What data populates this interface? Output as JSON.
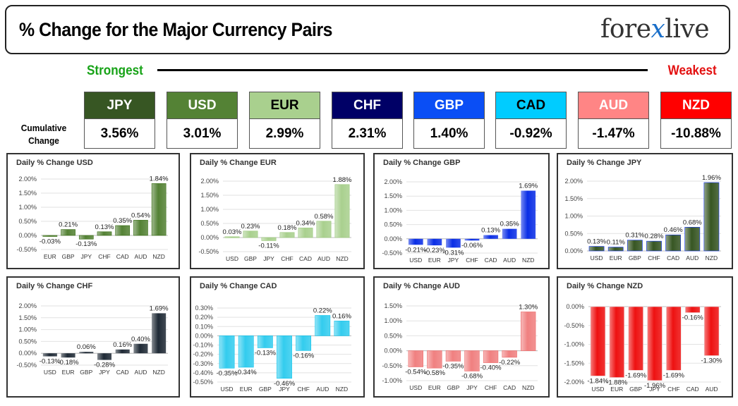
{
  "header": {
    "title": "% Change for the Major Currency Pairs",
    "logo_left": "fore",
    "logo_x": "x",
    "logo_right": "live"
  },
  "legend": {
    "strongest": "Strongest",
    "weakest": "Weakest",
    "cumulative_label_1": "Cumulative",
    "cumulative_label_2": "Change"
  },
  "ranking": [
    {
      "code": "JPY",
      "value": "3.56%",
      "color": "#375623",
      "text_color": "#ffffff"
    },
    {
      "code": "USD",
      "value": "3.01%",
      "color": "#548235",
      "text_color": "#ffffff"
    },
    {
      "code": "EUR",
      "value": "2.99%",
      "color": "#a9d08e",
      "text_color": "#000000"
    },
    {
      "code": "CHF",
      "value": "2.31%",
      "color": "#000066",
      "text_color": "#ffffff"
    },
    {
      "code": "GBP",
      "value": "1.40%",
      "color": "#0a4ef5",
      "text_color": "#ffffff"
    },
    {
      "code": "CAD",
      "value": "-0.92%",
      "color": "#00ccff",
      "text_color": "#000000"
    },
    {
      "code": "AUD",
      "value": "-1.47%",
      "color": "#ff8585",
      "text_color": "#ffffff"
    },
    {
      "code": "NZD",
      "value": "-10.88%",
      "color": "#ff0000",
      "text_color": "#ffffff"
    }
  ],
  "chart_data": [
    {
      "type": "bar",
      "title": "Daily % Change USD",
      "color": "#548235",
      "categories": [
        "EUR",
        "GBP",
        "JPY",
        "CHF",
        "CAD",
        "AUD",
        "NZD"
      ],
      "values": [
        -0.03,
        0.21,
        -0.13,
        0.13,
        0.35,
        0.54,
        1.84
      ],
      "labels": [
        "-0.03%",
        "0.21%",
        "-0.13%",
        "0.13%",
        "0.35%",
        "0.54%",
        "1.84%"
      ],
      "ylim": [
        -0.5,
        2.0
      ],
      "ticks": [
        -0.5,
        0,
        0.5,
        1.0,
        1.5,
        2.0
      ],
      "tick_labels": [
        "-0.50%",
        "0.00%",
        "0.50%",
        "1.00%",
        "1.50%",
        "2.00%"
      ]
    },
    {
      "type": "bar",
      "title": "Daily % Change EUR",
      "color": "#a9d08e",
      "categories": [
        "USD",
        "GBP",
        "JPY",
        "CHF",
        "CAD",
        "AUD",
        "NZD"
      ],
      "values": [
        0.03,
        0.23,
        -0.11,
        0.18,
        0.34,
        0.58,
        1.88
      ],
      "labels": [
        "0.03%",
        "0.23%",
        "-0.11%",
        "0.18%",
        "0.34%",
        "0.58%",
        "1.88%"
      ],
      "ylim": [
        -0.5,
        2.0
      ],
      "ticks": [
        -0.5,
        0,
        0.5,
        1.0,
        1.5,
        2.0
      ],
      "tick_labels": [
        "-0.50%",
        "0.00%",
        "0.50%",
        "1.00%",
        "1.50%",
        "2.00%"
      ]
    },
    {
      "type": "bar",
      "title": "Daily % Change GBP",
      "color": "#0a2ee6",
      "categories": [
        "USD",
        "EUR",
        "JPY",
        "CHF",
        "CAD",
        "AUD",
        "NZD"
      ],
      "values": [
        -0.21,
        -0.23,
        -0.31,
        -0.06,
        0.13,
        0.35,
        1.69
      ],
      "labels": [
        "-0.21%",
        "-0.23%",
        "-0.31%",
        "-0.06%",
        "0.13%",
        "0.35%",
        "1.69%"
      ],
      "ylim": [
        -0.5,
        2.0
      ],
      "ticks": [
        -0.5,
        0,
        0.5,
        1.0,
        1.5,
        2.0
      ],
      "tick_labels": [
        "-0.50%",
        "0.00%",
        "0.50%",
        "1.00%",
        "1.50%",
        "2.00%"
      ]
    },
    {
      "type": "bar",
      "title": "Daily % Change JPY",
      "color": "#375623",
      "categories": [
        "USD",
        "EUR",
        "GBP",
        "CHF",
        "CAD",
        "AUD",
        "NZD"
      ],
      "values": [
        0.13,
        0.11,
        0.31,
        0.28,
        0.46,
        0.68,
        1.96
      ],
      "labels": [
        "0.13%",
        "0.11%",
        "0.31%",
        "0.28%",
        "0.46%",
        "0.68%",
        "1.96%"
      ],
      "ylim": [
        0,
        2.0
      ],
      "ticks": [
        0,
        0.5,
        1.0,
        1.5,
        2.0
      ],
      "tick_labels": [
        "0.00%",
        "0.50%",
        "1.00%",
        "1.50%",
        "2.00%"
      ]
    },
    {
      "type": "bar",
      "title": "Daily % Change CHF",
      "color": "#1f2a36",
      "categories": [
        "USD",
        "EUR",
        "GBP",
        "JPY",
        "CAD",
        "AUD",
        "NZD"
      ],
      "values": [
        -0.13,
        -0.18,
        0.06,
        -0.28,
        0.16,
        0.4,
        1.69
      ],
      "labels": [
        "-0.13%",
        "-0.18%",
        "0.06%",
        "-0.28%",
        "0.16%",
        "0.40%",
        "1.69%"
      ],
      "ylim": [
        -0.5,
        2.0
      ],
      "ticks": [
        -0.5,
        0,
        0.5,
        1.0,
        1.5,
        2.0
      ],
      "tick_labels": [
        "-0.50%",
        "0.00%",
        "0.50%",
        "1.00%",
        "1.50%",
        "2.00%"
      ]
    },
    {
      "type": "bar",
      "title": "Daily % Change CAD",
      "color": "#33ccee",
      "categories": [
        "USD",
        "EUR",
        "GBP",
        "JPY",
        "CHF",
        "AUD",
        "NZD"
      ],
      "values": [
        -0.35,
        -0.34,
        -0.13,
        -0.46,
        -0.16,
        0.22,
        0.16
      ],
      "labels": [
        "-0.35%",
        "-0.34%",
        "-0.13%",
        "-0.46%",
        "-0.16%",
        "0.22%",
        "0.16%"
      ],
      "ylim": [
        -0.5,
        0.3
      ],
      "ticks": [
        -0.5,
        -0.4,
        -0.3,
        -0.2,
        -0.1,
        0,
        0.1,
        0.2,
        0.3
      ],
      "tick_labels": [
        "-0.50%",
        "-0.40%",
        "-0.30%",
        "-0.20%",
        "-0.10%",
        "0.00%",
        "0.10%",
        "0.20%",
        "0.30%"
      ]
    },
    {
      "type": "bar",
      "title": "Daily % Change AUD",
      "color": "#f08080",
      "categories": [
        "USD",
        "EUR",
        "GBP",
        "JPY",
        "CHF",
        "CAD",
        "NZD"
      ],
      "values": [
        -0.54,
        -0.58,
        -0.35,
        -0.68,
        -0.4,
        -0.22,
        1.3
      ],
      "labels": [
        "-0.54%",
        "-0.58%",
        "-0.35%",
        "-0.68%",
        "-0.40%",
        "-0.22%",
        "1.30%"
      ],
      "ylim": [
        -1.0,
        1.5
      ],
      "ticks": [
        -1.0,
        -0.5,
        0,
        0.5,
        1.0,
        1.5
      ],
      "tick_labels": [
        "-1.00%",
        "-0.50%",
        "0.00%",
        "0.50%",
        "1.00%",
        "1.50%"
      ]
    },
    {
      "type": "bar",
      "title": "Daily % Change NZD",
      "color": "#ee1111",
      "categories": [
        "USD",
        "EUR",
        "GBP",
        "JPY",
        "CHF",
        "CAD",
        "AUD"
      ],
      "values": [
        -1.84,
        -1.88,
        -1.69,
        -1.96,
        -1.69,
        -0.16,
        -1.3
      ],
      "labels": [
        "-1.84%",
        "-1.88%",
        "-1.69%",
        "-1.96%",
        "-1.69%",
        "-0.16%",
        "-1.30%"
      ],
      "ylim": [
        -2.0,
        0
      ],
      "ticks": [
        -2.0,
        -1.5,
        -1.0,
        -0.5,
        0
      ],
      "tick_labels": [
        "-2.00%",
        "-1.50%",
        "-1.00%",
        "-0.50%",
        "0.00%"
      ]
    }
  ]
}
